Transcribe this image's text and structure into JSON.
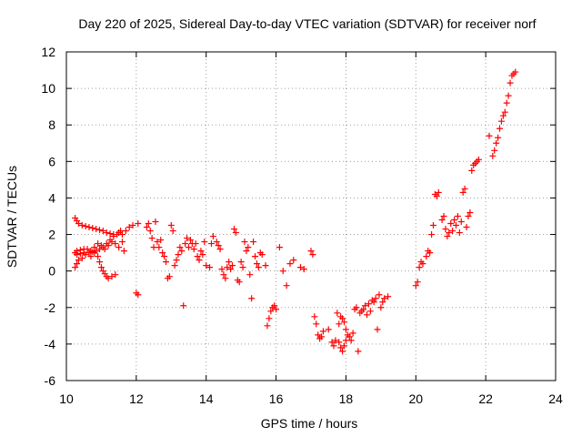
{
  "chart_data": {
    "type": "scatter",
    "title": "Day 220 of 2025, Sidereal Day-to-day VTEC variation (SDTVAR) for receiver norf",
    "xlabel": "GPS time / hours",
    "ylabel": "SDTVAR / TECUs",
    "xlim": [
      10,
      24
    ],
    "ylim": [
      -6,
      12
    ],
    "xticks": [
      10,
      12,
      14,
      16,
      18,
      20,
      22,
      24
    ],
    "yticks": [
      -6,
      -4,
      -2,
      0,
      2,
      4,
      6,
      8,
      10,
      12
    ],
    "xtick_labels": [
      "10",
      "12",
      "14",
      "16",
      "18",
      "20",
      "22",
      "24"
    ],
    "ytick_labels": [
      "-6",
      "-4",
      "-2",
      "0",
      "2",
      "4",
      "6",
      "8",
      "10",
      "12"
    ],
    "grid": true,
    "marker": "plus",
    "colors": {
      "marker": "#ff0000",
      "grid": "#a0a0a0",
      "axis": "#000000"
    },
    "series": [
      {
        "name": "SDTVAR",
        "points": [
          [
            10.25,
            2.9
          ],
          [
            10.3,
            2.75
          ],
          [
            10.35,
            2.6
          ],
          [
            10.45,
            2.5
          ],
          [
            10.55,
            2.45
          ],
          [
            10.65,
            2.4
          ],
          [
            10.75,
            2.35
          ],
          [
            10.85,
            2.3
          ],
          [
            10.95,
            2.25
          ],
          [
            11.05,
            2.2
          ],
          [
            11.15,
            2.1
          ],
          [
            11.25,
            2.05
          ],
          [
            11.35,
            2.0
          ],
          [
            10.25,
            0.2
          ],
          [
            10.3,
            0.4
          ],
          [
            10.35,
            0.6
          ],
          [
            10.45,
            0.7
          ],
          [
            10.55,
            0.9
          ],
          [
            10.65,
            1.0
          ],
          [
            10.75,
            1.05
          ],
          [
            10.85,
            1.1
          ],
          [
            10.95,
            1.2
          ],
          [
            11.05,
            1.3
          ],
          [
            11.15,
            1.5
          ],
          [
            11.25,
            1.7
          ],
          [
            11.35,
            1.9
          ],
          [
            11.45,
            2.0
          ],
          [
            11.5,
            2.1
          ],
          [
            11.55,
            2.2
          ],
          [
            11.6,
            2.0
          ],
          [
            10.25,
            1.0
          ],
          [
            10.3,
            1.1
          ],
          [
            10.4,
            1.15
          ],
          [
            10.5,
            1.2
          ],
          [
            10.6,
            1.2
          ],
          [
            10.7,
            1.1
          ],
          [
            10.8,
            1.0
          ],
          [
            10.9,
            0.8
          ],
          [
            10.95,
            0.5
          ],
          [
            11.0,
            0.2
          ],
          [
            11.05,
            0.0
          ],
          [
            11.1,
            -0.15
          ],
          [
            11.15,
            -0.3
          ],
          [
            11.2,
            -0.4
          ],
          [
            11.3,
            -0.3
          ],
          [
            11.4,
            -0.2
          ],
          [
            10.3,
            0.9
          ],
          [
            10.4,
            0.95
          ],
          [
            10.5,
            1.0
          ],
          [
            10.7,
            0.8
          ],
          [
            10.8,
            1.3
          ],
          [
            10.9,
            1.5
          ],
          [
            11.0,
            1.4
          ],
          [
            11.1,
            1.2
          ],
          [
            11.2,
            1.4
          ],
          [
            11.3,
            1.6
          ],
          [
            11.4,
            1.5
          ],
          [
            11.5,
            1.3
          ],
          [
            11.6,
            1.6
          ],
          [
            11.65,
            1.1
          ],
          [
            11.7,
            2.2
          ],
          [
            11.8,
            2.4
          ],
          [
            11.9,
            2.5
          ],
          [
            12.0,
            -1.2
          ],
          [
            12.05,
            -1.3
          ],
          [
            12.05,
            2.6
          ],
          [
            12.3,
            2.4
          ],
          [
            12.35,
            2.6
          ],
          [
            12.4,
            2.2
          ],
          [
            12.45,
            1.8
          ],
          [
            12.5,
            1.3
          ],
          [
            12.55,
            2.7
          ],
          [
            12.6,
            1.6
          ],
          [
            12.65,
            1.3
          ],
          [
            12.7,
            1.7
          ],
          [
            12.75,
            1.0
          ],
          [
            12.8,
            0.8
          ],
          [
            12.85,
            0.5
          ],
          [
            12.9,
            -0.4
          ],
          [
            12.95,
            -0.3
          ],
          [
            13.0,
            2.5
          ],
          [
            13.05,
            2.2
          ],
          [
            13.1,
            0.3
          ],
          [
            13.15,
            0.6
          ],
          [
            13.2,
            0.9
          ],
          [
            13.25,
            1.3
          ],
          [
            13.3,
            1.1
          ],
          [
            13.35,
            -1.9
          ],
          [
            13.4,
            1.5
          ],
          [
            13.45,
            1.8
          ],
          [
            13.5,
            1.3
          ],
          [
            13.55,
            1.7
          ],
          [
            13.6,
            1.5
          ],
          [
            13.65,
            1.2
          ],
          [
            13.7,
            1.5
          ],
          [
            13.75,
            0.8
          ],
          [
            13.8,
            0.6
          ],
          [
            13.85,
            1.1
          ],
          [
            13.9,
            0.9
          ],
          [
            13.95,
            1.6
          ],
          [
            14.0,
            0.3
          ],
          [
            14.1,
            0.2
          ],
          [
            14.15,
            1.5
          ],
          [
            14.2,
            1.9
          ],
          [
            14.3,
            1.6
          ],
          [
            14.35,
            1.4
          ],
          [
            14.4,
            1.2
          ],
          [
            14.45,
            0.1
          ],
          [
            14.5,
            -0.2
          ],
          [
            14.55,
            -0.4
          ],
          [
            14.6,
            0.2
          ],
          [
            14.65,
            0.5
          ],
          [
            14.7,
            0.1
          ],
          [
            14.75,
            0.3
          ],
          [
            14.8,
            2.3
          ],
          [
            14.85,
            2.1
          ],
          [
            14.9,
            -0.5
          ],
          [
            14.95,
            -0.6
          ],
          [
            15.0,
            0.5
          ],
          [
            15.05,
            0.2
          ],
          [
            15.1,
            1.6
          ],
          [
            15.15,
            1.1
          ],
          [
            15.2,
            1.3
          ],
          [
            15.25,
            -0.2
          ],
          [
            15.3,
            -1.5
          ],
          [
            15.35,
            1.6
          ],
          [
            15.4,
            0.8
          ],
          [
            15.45,
            0.4
          ],
          [
            15.5,
            0.2
          ],
          [
            15.55,
            1.0
          ],
          [
            15.6,
            0.9
          ],
          [
            15.7,
            0.3
          ],
          [
            15.75,
            -3.0
          ],
          [
            15.8,
            -2.6
          ],
          [
            15.85,
            -2.2
          ],
          [
            15.9,
            -2.0
          ],
          [
            15.95,
            -1.9
          ],
          [
            16.0,
            -2.1
          ],
          [
            16.1,
            1.3
          ],
          [
            16.2,
            0.0
          ],
          [
            16.3,
            -0.8
          ],
          [
            16.4,
            0.4
          ],
          [
            16.5,
            0.6
          ],
          [
            16.7,
            0.2
          ],
          [
            16.8,
            0.1
          ],
          [
            17.0,
            1.1
          ],
          [
            17.05,
            0.9
          ],
          [
            17.1,
            -2.5
          ],
          [
            17.15,
            -2.9
          ],
          [
            17.2,
            -3.5
          ],
          [
            17.25,
            -3.7
          ],
          [
            17.3,
            -3.6
          ],
          [
            17.35,
            -3.3
          ],
          [
            17.5,
            -3.2
          ],
          [
            17.6,
            -3.9
          ],
          [
            17.65,
            -4.1
          ],
          [
            17.7,
            -3.8
          ],
          [
            17.75,
            -2.3
          ],
          [
            17.8,
            -2.9
          ],
          [
            17.85,
            -2.5
          ],
          [
            17.9,
            -2.6
          ],
          [
            17.95,
            -2.8
          ],
          [
            18.0,
            -3.2
          ],
          [
            18.05,
            -3.5
          ],
          [
            18.1,
            -3.6
          ],
          [
            18.15,
            -3.8
          ],
          [
            18.2,
            -3.4
          ],
          [
            18.25,
            -2.1
          ],
          [
            18.3,
            -2.0
          ],
          [
            18.35,
            -4.4
          ],
          [
            18.4,
            -2.3
          ],
          [
            18.45,
            -2.2
          ],
          [
            18.5,
            -2.1
          ],
          [
            18.55,
            -1.9
          ],
          [
            18.6,
            -2.4
          ],
          [
            18.65,
            -1.8
          ],
          [
            18.7,
            -2.2
          ],
          [
            18.75,
            -1.6
          ],
          [
            18.8,
            -1.7
          ],
          [
            18.85,
            -1.5
          ],
          [
            18.9,
            -3.2
          ],
          [
            18.95,
            -1.3
          ],
          [
            19.0,
            -2.0
          ],
          [
            19.05,
            -1.7
          ],
          [
            19.1,
            -1.5
          ],
          [
            19.2,
            -1.4
          ],
          [
            17.85,
            -4.2
          ],
          [
            17.9,
            -4.4
          ],
          [
            17.95,
            -4.1
          ],
          [
            18.0,
            -3.8
          ],
          [
            17.8,
            -3.9
          ],
          [
            20.0,
            -0.8
          ],
          [
            20.05,
            -0.6
          ],
          [
            20.1,
            0.2
          ],
          [
            20.15,
            0.5
          ],
          [
            20.2,
            0.4
          ],
          [
            20.3,
            0.8
          ],
          [
            20.35,
            1.1
          ],
          [
            20.4,
            1.0
          ],
          [
            20.45,
            2.0
          ],
          [
            20.5,
            2.5
          ],
          [
            20.55,
            4.2
          ],
          [
            20.6,
            4.1
          ],
          [
            20.65,
            4.3
          ],
          [
            20.75,
            2.8
          ],
          [
            20.8,
            3.0
          ],
          [
            20.85,
            2.3
          ],
          [
            20.9,
            1.9
          ],
          [
            20.95,
            2.1
          ],
          [
            21.0,
            2.6
          ],
          [
            21.05,
            2.2
          ],
          [
            21.1,
            2.8
          ],
          [
            21.15,
            2.5
          ],
          [
            21.2,
            3.0
          ],
          [
            21.25,
            2.1
          ],
          [
            21.3,
            2.7
          ],
          [
            21.35,
            4.3
          ],
          [
            21.4,
            4.5
          ],
          [
            21.45,
            2.4
          ],
          [
            21.5,
            3.0
          ],
          [
            21.55,
            3.2
          ],
          [
            21.6,
            5.5
          ],
          [
            21.65,
            5.8
          ],
          [
            21.7,
            5.9
          ],
          [
            21.75,
            6.0
          ],
          [
            21.8,
            6.1
          ],
          [
            22.1,
            7.4
          ],
          [
            22.2,
            6.3
          ],
          [
            22.25,
            6.6
          ],
          [
            22.3,
            7.0
          ],
          [
            22.35,
            7.3
          ],
          [
            22.4,
            7.8
          ],
          [
            22.45,
            8.2
          ],
          [
            22.5,
            8.5
          ],
          [
            22.55,
            8.7
          ],
          [
            22.6,
            9.2
          ],
          [
            22.65,
            9.6
          ],
          [
            22.7,
            10.3
          ],
          [
            22.75,
            10.7
          ],
          [
            22.8,
            10.8
          ],
          [
            22.85,
            10.9
          ]
        ]
      }
    ]
  }
}
